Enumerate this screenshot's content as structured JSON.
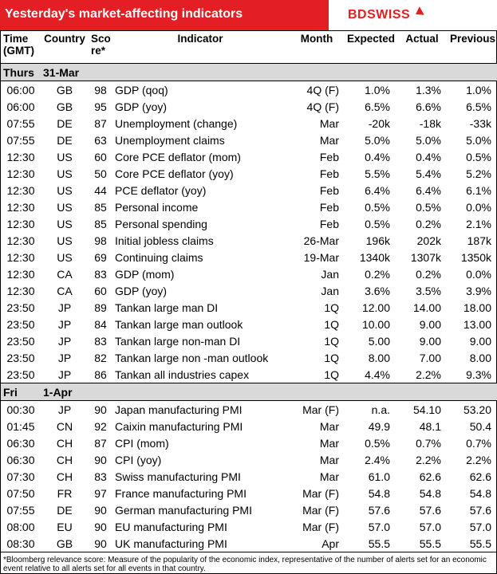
{
  "banner": {
    "title": "Yesterday's market-affecting indicators",
    "logo": "BDSWISS"
  },
  "headers": {
    "time": [
      "Time",
      "(GMT)"
    ],
    "country": "Country",
    "score": [
      "Sco",
      "re*"
    ],
    "indicator": "Indicator",
    "month": "Month",
    "expected": "Expected",
    "actual": "Actual",
    "previous": "Previous"
  },
  "days": [
    {
      "label": "Thurs",
      "date": "31-Mar",
      "rows": [
        {
          "time": "06:00",
          "country": "GB",
          "score": "98",
          "indicator": "GDP (qoq)",
          "month": "4Q (F)",
          "expected": "1.0%",
          "actual": "1.3%",
          "previous": "1.0%"
        },
        {
          "time": "06:00",
          "country": "GB",
          "score": "95",
          "indicator": "GDP (yoy)",
          "month": "4Q (F)",
          "expected": "6.5%",
          "actual": "6.6%",
          "previous": "6.5%"
        },
        {
          "time": "07:55",
          "country": "DE",
          "score": "87",
          "indicator": "Unemployment (change)",
          "month": "Mar",
          "expected": "-20k",
          "actual": "-18k",
          "previous": "-33k"
        },
        {
          "time": "07:55",
          "country": "DE",
          "score": "63",
          "indicator": "Unemployment claims",
          "month": "Mar",
          "expected": "5.0%",
          "actual": "5.0%",
          "previous": "5.0%"
        },
        {
          "time": "12:30",
          "country": "US",
          "score": "60",
          "indicator": "Core PCE deflator (mom)",
          "month": "Feb",
          "expected": "0.4%",
          "actual": "0.4%",
          "previous": "0.5%"
        },
        {
          "time": "12:30",
          "country": "US",
          "score": "50",
          "indicator": "Core PCE deflator (yoy)",
          "month": "Feb",
          "expected": "5.5%",
          "actual": "5.4%",
          "previous": "5.2%"
        },
        {
          "time": "12:30",
          "country": "US",
          "score": "44",
          "indicator": "PCE deflator (yoy)",
          "month": "Feb",
          "expected": "6.4%",
          "actual": "6.4%",
          "previous": "6.1%"
        },
        {
          "time": "12:30",
          "country": "US",
          "score": "85",
          "indicator": "Personal income",
          "month": "Feb",
          "expected": "0.5%",
          "actual": "0.5%",
          "previous": "0.0%"
        },
        {
          "time": "12:30",
          "country": "US",
          "score": "85",
          "indicator": "Personal spending",
          "month": "Feb",
          "expected": "0.5%",
          "actual": "0.2%",
          "previous": "2.1%"
        },
        {
          "time": "12:30",
          "country": "US",
          "score": "98",
          "indicator": "Initial jobless claims",
          "month": "26-Mar",
          "expected": "196k",
          "actual": "202k",
          "previous": "187k"
        },
        {
          "time": "12:30",
          "country": "US",
          "score": "69",
          "indicator": "Continuing claims",
          "month": "19-Mar",
          "expected": "1340k",
          "actual": "1307k",
          "previous": "1350k"
        },
        {
          "time": "12:30",
          "country": "CA",
          "score": "83",
          "indicator": "GDP (mom)",
          "month": "Jan",
          "expected": "0.2%",
          "actual": "0.2%",
          "previous": "0.0%"
        },
        {
          "time": "12:30",
          "country": "CA",
          "score": "60",
          "indicator": "GDP (yoy)",
          "month": "Jan",
          "expected": "3.6%",
          "actual": "3.5%",
          "previous": "3.9%"
        },
        {
          "time": "23:50",
          "country": "JP",
          "score": "89",
          "indicator": "Tankan large man DI",
          "month": "1Q",
          "expected": "12.00",
          "actual": "14.00",
          "previous": "18.00"
        },
        {
          "time": "23:50",
          "country": "JP",
          "score": "84",
          "indicator": "Tankan large man outlook",
          "month": "1Q",
          "expected": "10.00",
          "actual": "9.00",
          "previous": "13.00"
        },
        {
          "time": "23:50",
          "country": "JP",
          "score": "83",
          "indicator": "Tankan large non-man DI",
          "month": "1Q",
          "expected": "5.00",
          "actual": "9.00",
          "previous": "9.00"
        },
        {
          "time": "23:50",
          "country": "JP",
          "score": "82",
          "indicator": "Tankan large non -man outlook",
          "month": "1Q",
          "expected": "8.00",
          "actual": "7.00",
          "previous": "8.00"
        },
        {
          "time": "23:50",
          "country": "JP",
          "score": "86",
          "indicator": "Tankan all industries capex",
          "month": "1Q",
          "expected": "4.4%",
          "actual": "2.2%",
          "previous": "9.3%"
        }
      ]
    },
    {
      "label": "Fri",
      "date": "1-Apr",
      "rows": [
        {
          "time": "00:30",
          "country": "JP",
          "score": "90",
          "indicator": "Japan manufacturing PMI",
          "month": "Mar (F)",
          "expected": "n.a.",
          "actual": "54.10",
          "previous": "53.20"
        },
        {
          "time": "01:45",
          "country": "CN",
          "score": "92",
          "indicator": "Caixin manufacturing PMI",
          "month": "Mar",
          "expected": "49.9",
          "actual": "48.1",
          "previous": "50.4"
        },
        {
          "time": "06:30",
          "country": "CH",
          "score": "87",
          "indicator": "CPI (mom)",
          "month": "Mar",
          "expected": "0.5%",
          "actual": "0.7%",
          "previous": "0.7%"
        },
        {
          "time": "06:30",
          "country": "CH",
          "score": "90",
          "indicator": "CPI (yoy)",
          "month": "Mar",
          "expected": "2.4%",
          "actual": "2.2%",
          "previous": "2.2%"
        },
        {
          "time": "07:30",
          "country": "CH",
          "score": "83",
          "indicator": "Swiss manufacturing PMI",
          "month": "Mar",
          "expected": "61.0",
          "actual": "62.6",
          "previous": "62.6"
        },
        {
          "time": "07:50",
          "country": "FR",
          "score": "97",
          "indicator": "France manufacturing PMI",
          "month": "Mar (F)",
          "expected": "54.8",
          "actual": "54.8",
          "previous": "54.8"
        },
        {
          "time": "07:55",
          "country": "DE",
          "score": "90",
          "indicator": "German manufacturing PMI",
          "month": "Mar (F)",
          "expected": "57.6",
          "actual": "57.6",
          "previous": "57.6"
        },
        {
          "time": "08:00",
          "country": "EU",
          "score": "90",
          "indicator": "EU manufacturing PMI",
          "month": "Mar (F)",
          "expected": "57.0",
          "actual": "57.0",
          "previous": "57.0"
        },
        {
          "time": "08:30",
          "country": "GB",
          "score": "90",
          "indicator": "UK manufacturing PMI",
          "month": "Apr",
          "expected": "55.5",
          "actual": "55.5",
          "previous": "55.5"
        }
      ]
    }
  ],
  "footnote": "*Bloomberg relevance score: Measure of the popularity of the economic index, representative of the number of alerts set for an economic event relative to all alerts set for all events in that country."
}
